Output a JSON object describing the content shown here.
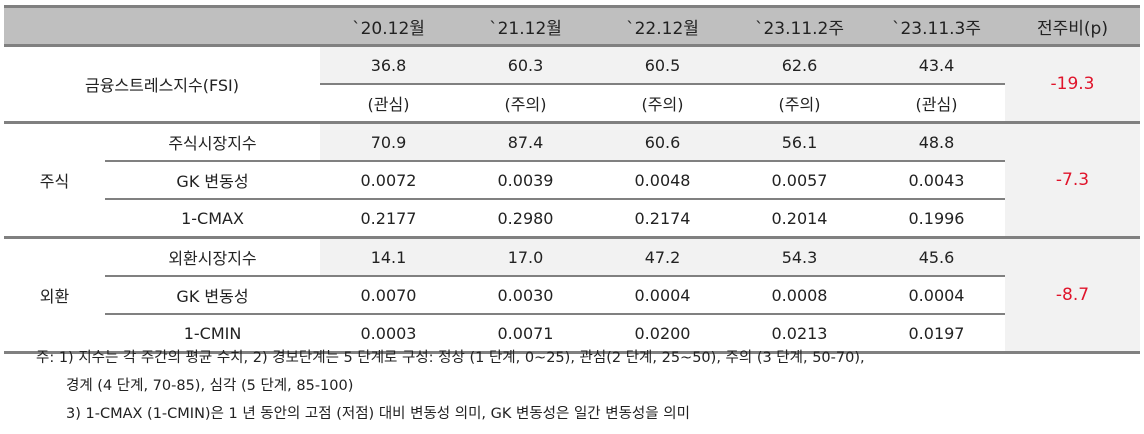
{
  "header": [
    "",
    "`20.12월",
    "`21.12월",
    "`22.12월",
    "`23.11.2주",
    "`23.11.3주",
    "전주비(p)"
  ],
  "fsi": {
    "label": "금융스트레스지수(FSI)",
    "values": [
      "36.8",
      "60.3",
      "60.5",
      "62.6",
      "43.4"
    ],
    "levels": [
      "(관심)",
      "(주의)",
      "(주의)",
      "(주의)",
      "(관심)"
    ],
    "change": "-19.3"
  },
  "stock": {
    "label": "주식",
    "change": "-7.3",
    "rows": [
      {
        "label": "주식시장지수",
        "values": [
          "70.9",
          "87.4",
          "60.6",
          "56.1",
          "48.8"
        ]
      },
      {
        "label": "GK 변동성",
        "values": [
          "0.0072",
          "0.0039",
          "0.0048",
          "0.0057",
          "0.0043"
        ]
      },
      {
        "label": "1-CMAX",
        "values": [
          "0.2177",
          "0.2980",
          "0.2174",
          "0.2014",
          "0.1996"
        ]
      }
    ]
  },
  "fx": {
    "label": "외환",
    "change": "-8.7",
    "rows": [
      {
        "label": "외환시장지수",
        "values": [
          "14.1",
          "17.0",
          "47.2",
          "54.3",
          "45.6"
        ]
      },
      {
        "label": "GK 변동성",
        "values": [
          "0.0070",
          "0.0030",
          "0.0004",
          "0.0008",
          "0.0004"
        ]
      },
      {
        "label": "1-CMIN",
        "values": [
          "0.0003",
          "0.0071",
          "0.0200",
          "0.0213",
          "0.0197"
        ]
      }
    ]
  },
  "notes": [
    "주: 1) 지수는 각 주간의 평균 수치, 2) 경보단계는 5 단계로 구성: 정상 (1 단계, 0~25), 관심(2 단계, 25~50), 주의 (3 단계, 50-70),",
    "경계 (4 단계, 70-85), 심각 (5 단계, 85-100)",
    "3) 1-CMAX (1-CMIN)은 1 년 동안의 고점 (저점) 대비 변동성 의미, GK 변동성은 일간 변동성을 의미"
  ],
  "colors": {
    "header_bg": "#bfbfbf",
    "shade": "#f2f2f2",
    "negative": "#e0142b"
  }
}
